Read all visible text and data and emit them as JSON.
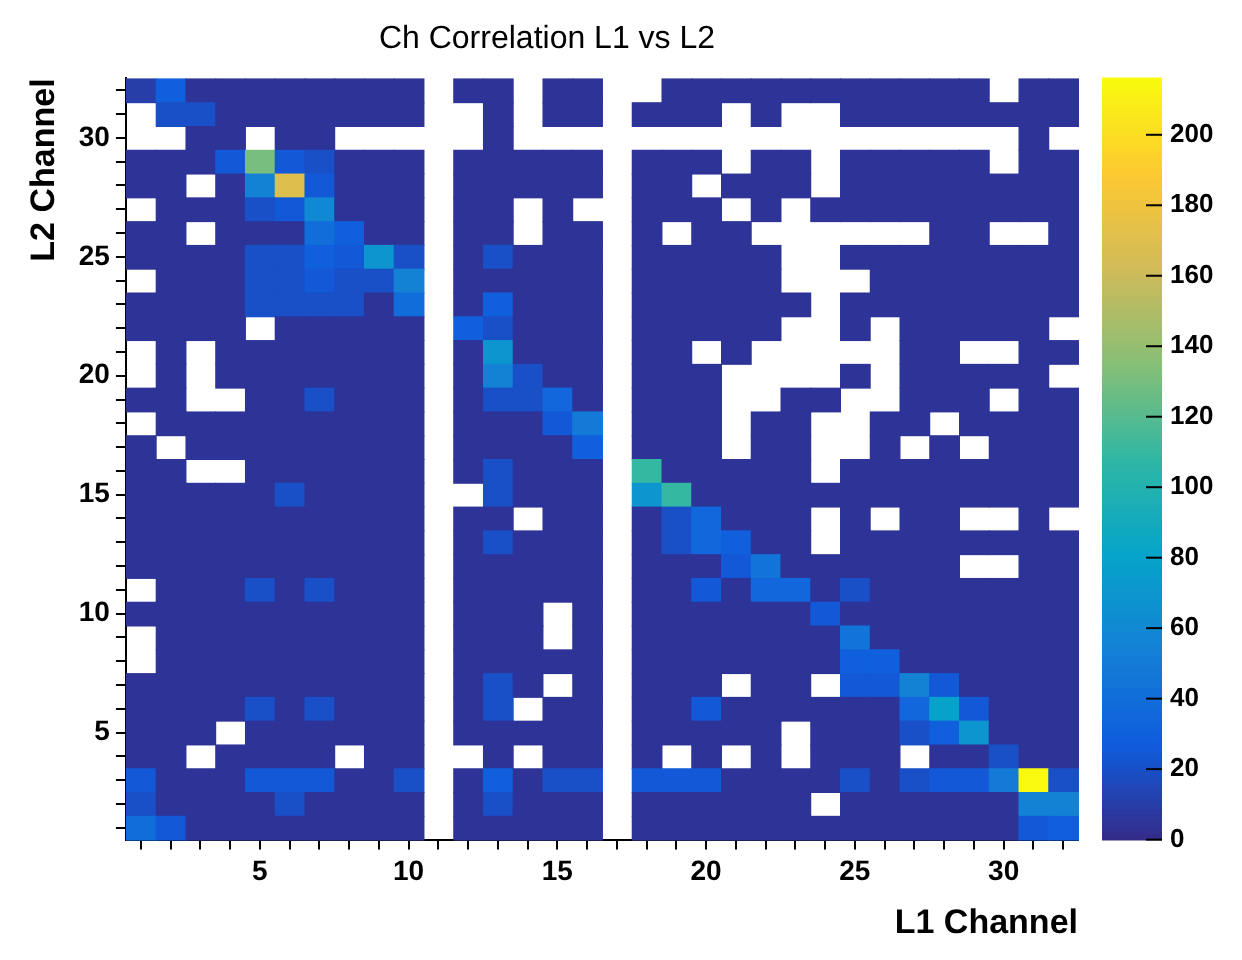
{
  "chart_data": {
    "type": "heatmap",
    "title": "Ch Correlation L1 vs L2",
    "xlabel": "L1 Channel",
    "ylabel": "L2 Channel",
    "categories": [
      null,
      null,
      null,
      null,
      "5",
      null,
      null,
      null,
      null,
      "10",
      null,
      null,
      null,
      null,
      "15",
      null,
      null,
      null,
      null,
      "20",
      null,
      null,
      null,
      null,
      "25",
      null,
      null,
      null,
      null,
      "30",
      null,
      null
    ],
    "y_categories": [
      null,
      null,
      "30",
      null,
      null,
      null,
      null,
      "25",
      null,
      null,
      null,
      null,
      "20",
      null,
      null,
      null,
      null,
      "15",
      null,
      null,
      null,
      null,
      "10",
      null,
      null,
      null,
      null,
      "5",
      null,
      null,
      null,
      null
    ],
    "clim": [
      0,
      216
    ],
    "cticks": [
      0,
      20,
      40,
      60,
      80,
      100,
      120,
      140,
      160,
      180,
      200
    ],
    "cells": [
      [
        10,
        30,
        5,
        5,
        5,
        5,
        5,
        5,
        5,
        5,
        null,
        5,
        5,
        null,
        5,
        5,
        null,
        null,
        5,
        5,
        5,
        5,
        5,
        5,
        5,
        5,
        5,
        5,
        5,
        null,
        5,
        5
      ],
      [
        null,
        20,
        20,
        5,
        5,
        5,
        5,
        5,
        5,
        5,
        null,
        null,
        5,
        null,
        5,
        5,
        null,
        5,
        5,
        5,
        null,
        5,
        null,
        null,
        5,
        5,
        5,
        5,
        5,
        5,
        5,
        5
      ],
      [
        null,
        null,
        5,
        5,
        null,
        5,
        5,
        null,
        null,
        null,
        null,
        null,
        5,
        null,
        null,
        null,
        null,
        null,
        null,
        null,
        null,
        null,
        null,
        null,
        null,
        null,
        null,
        null,
        null,
        null,
        5,
        null
      ],
      [
        5,
        5,
        5,
        25,
        130,
        25,
        20,
        5,
        5,
        5,
        null,
        5,
        5,
        5,
        5,
        5,
        null,
        5,
        5,
        5,
        null,
        5,
        5,
        null,
        5,
        5,
        5,
        5,
        5,
        null,
        5,
        5
      ],
      [
        5,
        5,
        null,
        5,
        55,
        170,
        25,
        5,
        5,
        5,
        null,
        5,
        5,
        5,
        5,
        5,
        null,
        5,
        5,
        null,
        5,
        5,
        5,
        null,
        5,
        5,
        5,
        5,
        5,
        5,
        5,
        5
      ],
      [
        null,
        5,
        5,
        5,
        20,
        25,
        60,
        5,
        5,
        5,
        null,
        5,
        5,
        null,
        5,
        null,
        null,
        5,
        5,
        5,
        null,
        5,
        null,
        5,
        5,
        5,
        5,
        5,
        5,
        5,
        5,
        5
      ],
      [
        5,
        5,
        null,
        5,
        5,
        5,
        40,
        30,
        5,
        5,
        null,
        5,
        5,
        null,
        5,
        5,
        null,
        5,
        null,
        5,
        5,
        null,
        null,
        null,
        null,
        null,
        null,
        5,
        5,
        null,
        null,
        5
      ],
      [
        5,
        5,
        5,
        5,
        20,
        20,
        30,
        25,
        70,
        20,
        null,
        5,
        20,
        5,
        5,
        5,
        null,
        5,
        5,
        5,
        5,
        5,
        null,
        null,
        5,
        5,
        5,
        5,
        5,
        5,
        5,
        5
      ],
      [
        null,
        5,
        5,
        5,
        20,
        20,
        25,
        20,
        20,
        55,
        null,
        5,
        5,
        5,
        5,
        5,
        null,
        5,
        5,
        5,
        5,
        5,
        null,
        null,
        null,
        5,
        5,
        5,
        5,
        5,
        5,
        5
      ],
      [
        5,
        5,
        5,
        5,
        20,
        20,
        20,
        20,
        5,
        40,
        null,
        5,
        30,
        5,
        5,
        5,
        null,
        5,
        5,
        5,
        5,
        5,
        5,
        null,
        5,
        5,
        5,
        5,
        5,
        5,
        5,
        5
      ],
      [
        5,
        5,
        5,
        5,
        null,
        5,
        5,
        5,
        5,
        5,
        null,
        30,
        20,
        5,
        5,
        5,
        null,
        5,
        5,
        5,
        5,
        5,
        null,
        null,
        5,
        null,
        5,
        5,
        5,
        5,
        5,
        null
      ],
      [
        null,
        5,
        null,
        5,
        5,
        5,
        5,
        5,
        5,
        5,
        null,
        5,
        70,
        5,
        5,
        5,
        null,
        5,
        5,
        null,
        5,
        null,
        null,
        null,
        null,
        null,
        5,
        5,
        null,
        null,
        5,
        5
      ],
      [
        null,
        5,
        null,
        5,
        5,
        5,
        5,
        5,
        5,
        5,
        null,
        5,
        55,
        20,
        5,
        5,
        null,
        5,
        5,
        5,
        null,
        null,
        null,
        null,
        5,
        null,
        5,
        5,
        5,
        5,
        5,
        null
      ],
      [
        5,
        5,
        null,
        null,
        5,
        5,
        20,
        5,
        5,
        5,
        null,
        5,
        20,
        20,
        35,
        5,
        null,
        5,
        5,
        5,
        null,
        null,
        5,
        5,
        null,
        null,
        5,
        5,
        5,
        null,
        5,
        5
      ],
      [
        null,
        5,
        5,
        5,
        5,
        5,
        5,
        5,
        5,
        5,
        null,
        5,
        5,
        5,
        25,
        50,
        null,
        5,
        5,
        5,
        null,
        5,
        5,
        null,
        null,
        5,
        5,
        null,
        5,
        5,
        5,
        5
      ],
      [
        5,
        null,
        5,
        5,
        5,
        5,
        5,
        5,
        5,
        5,
        null,
        5,
        5,
        5,
        5,
        30,
        null,
        5,
        5,
        5,
        null,
        5,
        5,
        null,
        null,
        5,
        null,
        5,
        null,
        5,
        5,
        5
      ],
      [
        5,
        5,
        null,
        null,
        5,
        5,
        5,
        5,
        5,
        5,
        null,
        5,
        20,
        5,
        5,
        5,
        null,
        110,
        5,
        5,
        5,
        5,
        5,
        null,
        5,
        5,
        5,
        5,
        5,
        5,
        5,
        5
      ],
      [
        5,
        5,
        5,
        5,
        5,
        20,
        5,
        5,
        5,
        5,
        null,
        null,
        20,
        5,
        5,
        5,
        null,
        70,
        110,
        5,
        5,
        5,
        5,
        5,
        5,
        5,
        5,
        5,
        5,
        5,
        5,
        5
      ],
      [
        5,
        5,
        5,
        5,
        5,
        5,
        5,
        5,
        5,
        5,
        null,
        5,
        5,
        null,
        5,
        5,
        null,
        5,
        20,
        35,
        5,
        5,
        5,
        null,
        5,
        null,
        5,
        5,
        null,
        null,
        5,
        null
      ],
      [
        5,
        5,
        5,
        5,
        5,
        5,
        5,
        5,
        5,
        5,
        null,
        5,
        20,
        5,
        5,
        5,
        null,
        5,
        20,
        35,
        30,
        5,
        5,
        null,
        5,
        5,
        5,
        5,
        5,
        5,
        5,
        5
      ],
      [
        5,
        5,
        5,
        5,
        5,
        5,
        5,
        5,
        5,
        5,
        null,
        5,
        5,
        5,
        5,
        5,
        null,
        5,
        5,
        5,
        25,
        45,
        5,
        5,
        5,
        5,
        5,
        5,
        null,
        null,
        5,
        5
      ],
      [
        null,
        5,
        5,
        5,
        20,
        5,
        20,
        5,
        5,
        5,
        null,
        5,
        5,
        5,
        5,
        5,
        null,
        5,
        5,
        25,
        5,
        35,
        35,
        5,
        20,
        5,
        5,
        5,
        5,
        5,
        5,
        5
      ],
      [
        5,
        5,
        5,
        5,
        5,
        5,
        5,
        5,
        5,
        5,
        null,
        5,
        5,
        5,
        null,
        5,
        null,
        5,
        5,
        5,
        5,
        5,
        5,
        25,
        5,
        5,
        5,
        5,
        5,
        5,
        5,
        5
      ],
      [
        null,
        5,
        5,
        5,
        5,
        5,
        5,
        5,
        5,
        5,
        null,
        5,
        5,
        5,
        null,
        5,
        null,
        5,
        5,
        5,
        5,
        5,
        5,
        5,
        45,
        5,
        5,
        5,
        5,
        5,
        5,
        5
      ],
      [
        null,
        5,
        5,
        5,
        5,
        5,
        5,
        5,
        5,
        5,
        null,
        5,
        5,
        5,
        5,
        5,
        null,
        5,
        5,
        5,
        5,
        5,
        5,
        5,
        30,
        30,
        5,
        5,
        5,
        5,
        5,
        5
      ],
      [
        5,
        5,
        5,
        5,
        5,
        5,
        5,
        5,
        5,
        5,
        null,
        5,
        20,
        5,
        null,
        5,
        null,
        5,
        5,
        5,
        null,
        5,
        5,
        null,
        25,
        25,
        55,
        25,
        5,
        5,
        5,
        5
      ],
      [
        5,
        5,
        5,
        5,
        20,
        5,
        20,
        5,
        5,
        5,
        null,
        5,
        20,
        null,
        5,
        5,
        null,
        5,
        5,
        25,
        5,
        5,
        5,
        5,
        5,
        5,
        35,
        80,
        25,
        5,
        5,
        5
      ],
      [
        5,
        5,
        5,
        null,
        5,
        5,
        5,
        5,
        5,
        5,
        null,
        5,
        5,
        5,
        5,
        5,
        null,
        5,
        5,
        5,
        5,
        5,
        null,
        5,
        5,
        5,
        20,
        30,
        70,
        5,
        5,
        5
      ],
      [
        5,
        5,
        null,
        5,
        5,
        5,
        5,
        null,
        5,
        5,
        null,
        null,
        5,
        null,
        5,
        5,
        null,
        5,
        null,
        5,
        null,
        5,
        null,
        5,
        5,
        5,
        null,
        5,
        5,
        20,
        5,
        5
      ],
      [
        25,
        5,
        5,
        5,
        25,
        25,
        25,
        5,
        5,
        20,
        null,
        5,
        30,
        5,
        20,
        20,
        null,
        25,
        25,
        25,
        5,
        5,
        5,
        5,
        20,
        5,
        20,
        25,
        25,
        50,
        215,
        20
      ],
      [
        20,
        5,
        5,
        5,
        5,
        20,
        5,
        5,
        5,
        5,
        null,
        5,
        20,
        5,
        5,
        5,
        null,
        5,
        5,
        5,
        5,
        5,
        5,
        null,
        5,
        5,
        5,
        5,
        5,
        5,
        55,
        55
      ],
      [
        40,
        25,
        5,
        5,
        5,
        5,
        5,
        5,
        5,
        5,
        null,
        5,
        5,
        5,
        5,
        5,
        null,
        5,
        5,
        5,
        5,
        5,
        5,
        5,
        5,
        5,
        5,
        5,
        5,
        5,
        25,
        30
      ]
    ]
  }
}
